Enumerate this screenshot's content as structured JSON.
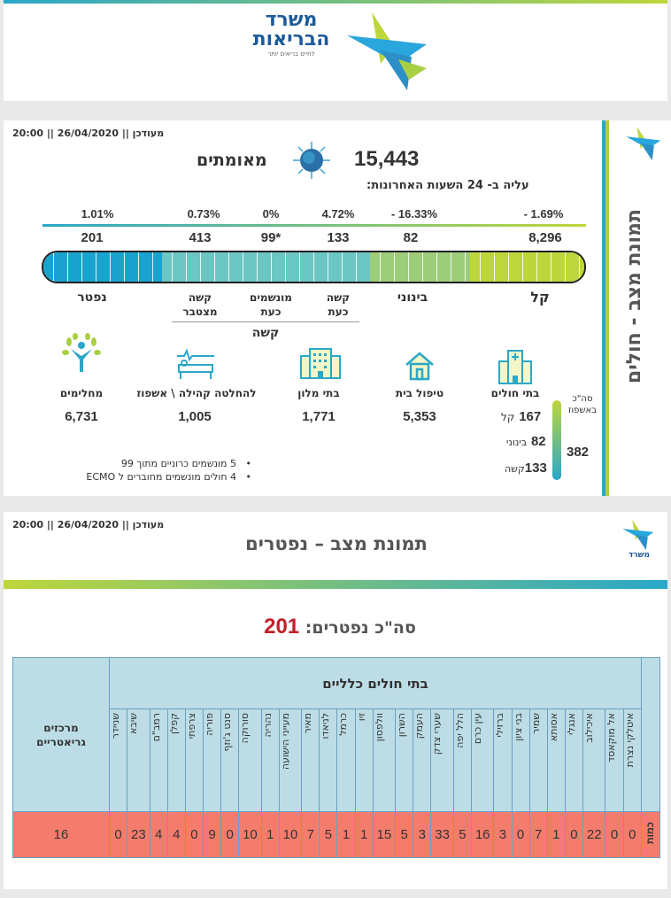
{
  "logo": {
    "name_line1": "משרד",
    "name_line2": "הבריאות",
    "tagline": "לחיים בריאים יותר"
  },
  "patients": {
    "updated": "מעודכן || 26/04/2020 || 20:00",
    "confirmed_count": "15,443",
    "confirmed_label": "מאומתים",
    "increase_label": "עליה ב- 24 השעות האחרונות:",
    "side_title": "תמונת מצב - חולים",
    "bar": [
      {
        "label": "נפטר",
        "value": "201",
        "change": "1.01%",
        "color": "#1ba3cf"
      },
      {
        "label": "קשה מצטבר",
        "value": "413",
        "change": "0.73%",
        "color": "#6cc6c3"
      },
      {
        "label": "מונשמים כעת",
        "value": "99*",
        "change": "0%",
        "color": "#6cc6c3"
      },
      {
        "label": "קשה כעת",
        "value": "133",
        "change": "4.72%",
        "color": "#6cc6c3"
      },
      {
        "label": "בינוני",
        "value": "82",
        "change": "- 16.33%",
        "color": "#9dcc7a"
      },
      {
        "label": "קל",
        "value": "8,296",
        "change": "- 1.69%",
        "color": "#bdd63b"
      }
    ],
    "severe_group_label": "קשה",
    "locations": [
      {
        "label": "מחלימים",
        "value": "6,731",
        "icon": "recovered-person-icon"
      },
      {
        "label": "להחלטה קהילה \\ אשפוז",
        "value": "1,005",
        "icon": "hospital-bed-icon"
      },
      {
        "label": "בתי מלון",
        "value": "1,771",
        "icon": "hotel-icon"
      },
      {
        "label": "טיפול בית",
        "value": "5,353",
        "icon": "house-icon"
      },
      {
        "label": "בתי חולים",
        "value": "",
        "icon": "hospital-icon"
      }
    ],
    "hospitalized": {
      "mild_label": "קל",
      "mild": "167",
      "moderate_label": "בינוני",
      "moderate": "82",
      "severe_label": "קשה",
      "severe": "133",
      "total_label_1": "סה\"כ",
      "total_label_2": "באשפוז",
      "total": "382"
    },
    "notes": [
      "5 מונשמים כרוניים מתוך 99",
      "4 חולים מונשמים מחוברים ל ECMO"
    ]
  },
  "deaths": {
    "updated": "מעודכן || 26/04/2020 || 20:00",
    "title": "תמונת מצב – נפטרים",
    "total_label": "סה\"כ נפטרים:",
    "total": "201",
    "total_color": "#c0202a",
    "table": {
      "group_header": "בתי חולים כלליים",
      "geriatric_header": "מרכזים גריאטריים",
      "geriatric_value": "16",
      "row_label": "כמות",
      "hospitals": [
        {
          "name": "איטלקי נצרת",
          "value": "0"
        },
        {
          "name": "אל מוקאסד",
          "value": "0"
        },
        {
          "name": "איכילוב",
          "value": "22"
        },
        {
          "name": "אנגלי",
          "value": "0"
        },
        {
          "name": "אסותא",
          "value": "1"
        },
        {
          "name": "שמיר",
          "value": "7"
        },
        {
          "name": "בני ציון",
          "value": "0"
        },
        {
          "name": "ברזילי",
          "value": "3"
        },
        {
          "name": "עין כרם",
          "value": "16"
        },
        {
          "name": "הלל יפה",
          "value": "5"
        },
        {
          "name": "שערי צדק",
          "value": "33"
        },
        {
          "name": "העמק",
          "value": "3"
        },
        {
          "name": "השרון",
          "value": "5"
        },
        {
          "name": "וולפסון",
          "value": "15"
        },
        {
          "name": "זיו",
          "value": "1"
        },
        {
          "name": "כרמל",
          "value": "1"
        },
        {
          "name": "לניאדו",
          "value": "5"
        },
        {
          "name": "מאיר",
          "value": "7"
        },
        {
          "name": "מעייני הישועה",
          "value": "10"
        },
        {
          "name": "נהריה",
          "value": "1"
        },
        {
          "name": "סורוקה",
          "value": "10"
        },
        {
          "name": "סנט ג'וזף",
          "value": "0"
        },
        {
          "name": "פוריה",
          "value": "9"
        },
        {
          "name": "צרפתי",
          "value": "0"
        },
        {
          "name": "קפלן",
          "value": "4"
        },
        {
          "name": "רמב\"ם",
          "value": "4"
        },
        {
          "name": "שיבא",
          "value": "23"
        },
        {
          "name": "שניידר",
          "value": "0"
        }
      ]
    }
  }
}
